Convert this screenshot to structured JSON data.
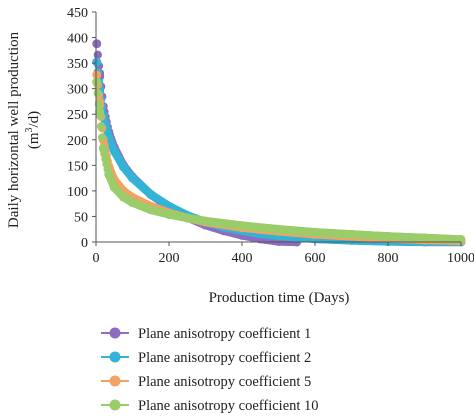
{
  "chart_data": {
    "type": "line",
    "title": "",
    "xlabel": "Production time (Days)",
    "ylabel_line1": "Daily horizontal well production",
    "ylabel_line2": "(m",
    "ylabel_sup": "3",
    "ylabel_line2_end": "/d)",
    "xlim": [
      0,
      1000
    ],
    "ylim": [
      0,
      450
    ],
    "x_ticks": [
      0,
      200,
      400,
      600,
      800,
      1000
    ],
    "y_ticks": [
      0,
      50,
      100,
      150,
      200,
      250,
      300,
      350,
      400,
      450
    ],
    "grid": false,
    "legend_position": "bottom-left",
    "series": [
      {
        "name": "Plane anisotropy coefficient 1",
        "color": "#8e6cc0",
        "x": [
          2,
          10,
          20,
          35,
          50,
          75,
          100,
          150,
          200,
          250,
          300,
          350,
          400,
          450,
          500,
          550
        ],
        "values": [
          388,
          330,
          265,
          215,
          185,
          150,
          127,
          93,
          68,
          48,
          33,
          22,
          13,
          6,
          1,
          0
        ]
      },
      {
        "name": "Plane anisotropy coefficient 2",
        "color": "#33b3d6",
        "x": [
          2,
          10,
          20,
          35,
          50,
          75,
          100,
          150,
          200,
          250,
          300,
          350,
          400,
          450,
          500,
          600,
          700,
          800,
          900,
          1000
        ],
        "values": [
          352,
          300,
          248,
          205,
          178,
          147,
          125,
          93,
          70,
          52,
          39,
          29,
          22,
          16,
          12,
          6,
          3,
          1,
          0,
          0
        ]
      },
      {
        "name": "Plane anisotropy coefficient 5",
        "color": "#f4a261",
        "x": [
          2,
          10,
          20,
          35,
          50,
          75,
          100,
          150,
          200,
          250,
          300,
          400,
          500,
          600,
          700,
          800,
          900,
          1000
        ],
        "values": [
          327,
          275,
          200,
          148,
          122,
          100,
          87,
          70,
          57,
          47,
          39,
          28,
          21,
          15,
          11,
          7,
          4,
          2
        ]
      },
      {
        "name": "Plane anisotropy coefficient 10",
        "color": "#9acc6a",
        "x": [
          2,
          10,
          20,
          35,
          50,
          75,
          100,
          150,
          200,
          250,
          300,
          400,
          500,
          600,
          700,
          800,
          900,
          1000
        ],
        "values": [
          313,
          255,
          183,
          132,
          107,
          88,
          77,
          63,
          54,
          47,
          41,
          32,
          25,
          19,
          15,
          11,
          8,
          5
        ]
      }
    ]
  }
}
